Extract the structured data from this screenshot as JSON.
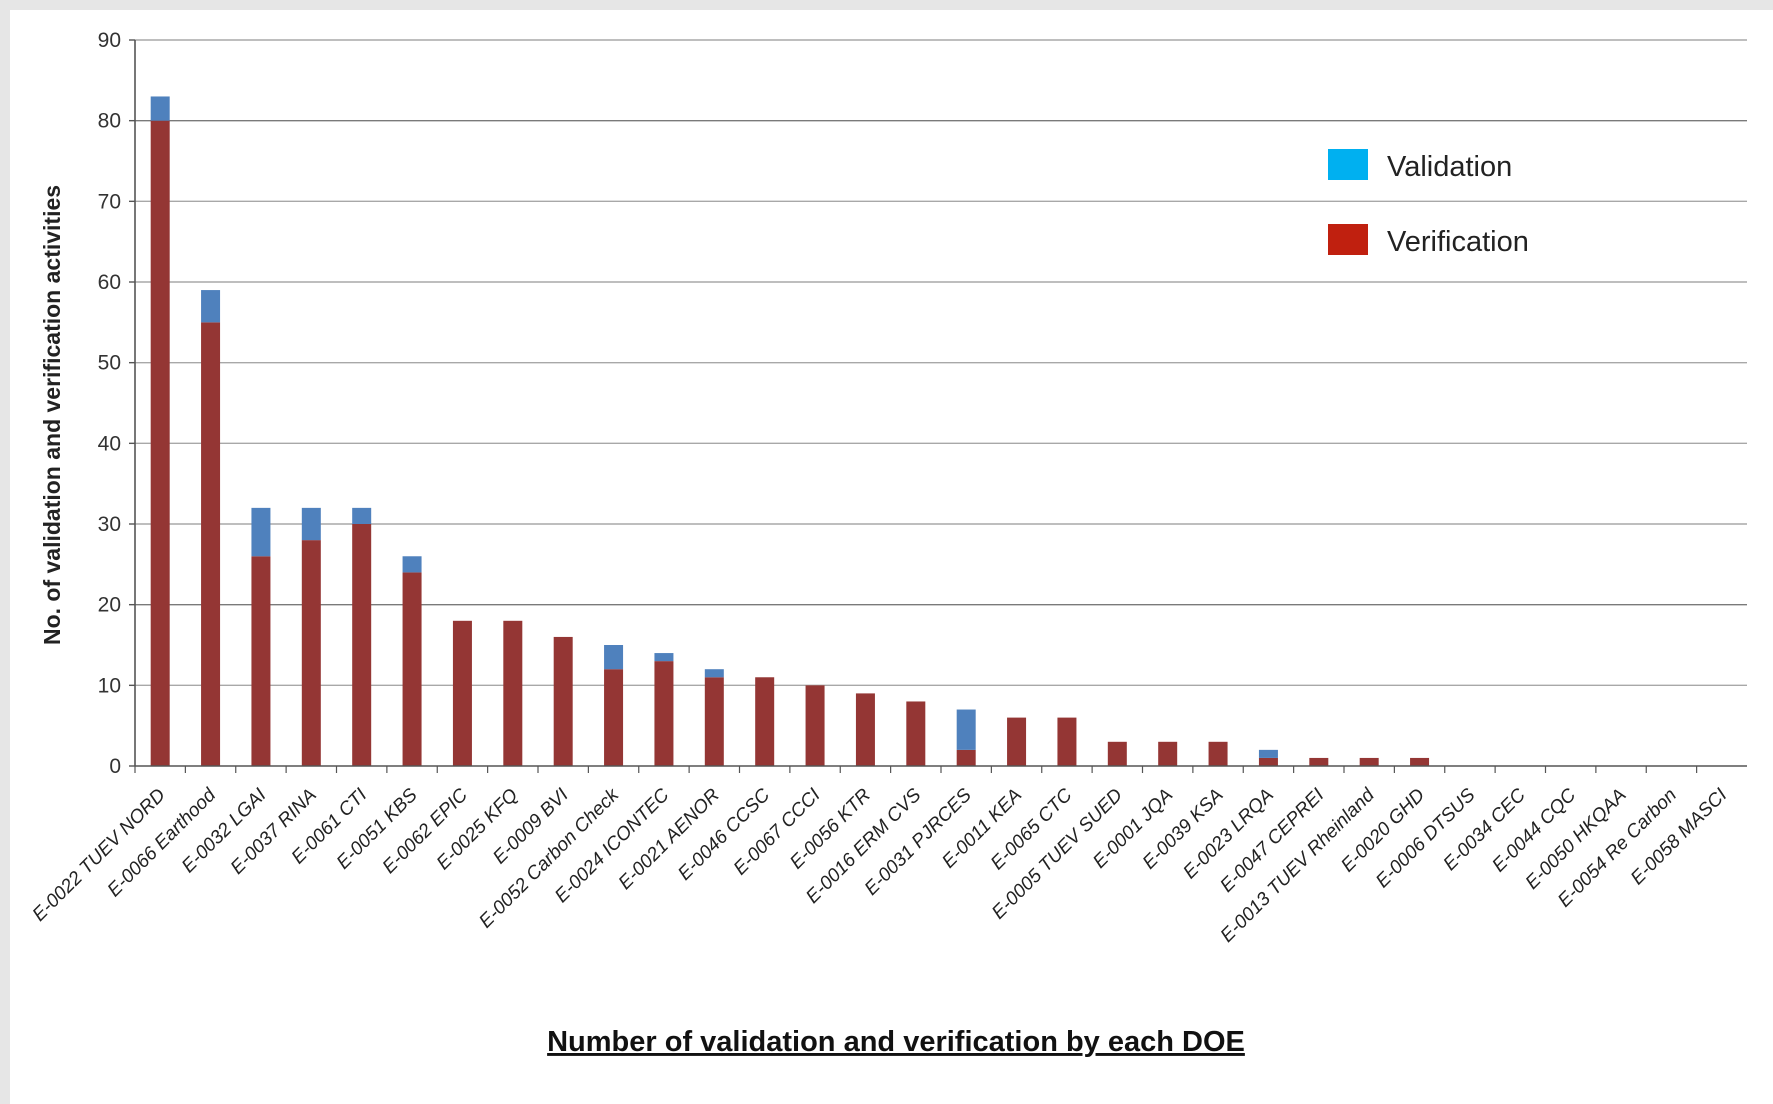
{
  "chart_data": {
    "type": "bar",
    "stacked": true,
    "title": "Number of validation and verification by each DOE",
    "xlabel": "",
    "ylabel": "No. of validation and verification activities",
    "ylim": [
      0,
      90
    ],
    "yticks": [
      0,
      10,
      20,
      30,
      40,
      50,
      60,
      70,
      80,
      90
    ],
    "grid": true,
    "legend_position": "top-right",
    "categories": [
      "E-0022 TUEV NORD",
      "E-0066 Earthood",
      "E-0032 LGAI",
      "E-0037 RINA",
      "E-0061 CTI",
      "E-0051 KBS",
      "E-0062 EPIC",
      "E-0025 KFQ",
      "E-0009 BVI",
      "E-0052 Carbon Check",
      "E-0024 ICONTEC",
      "E-0021 AENOR",
      "E-0046 CCSC",
      "E-0067 CCCI",
      "E-0056 KTR",
      "E-0016 ERM CVS",
      "E-0031 PJRCES",
      "E-0011 KEA",
      "E-0065 CTC",
      "E-0005 TUEV SUED",
      "E-0001 JQA",
      "E-0039 KSA",
      "E-0023 LRQA",
      "E-0047 CEPREI",
      "E-0013 TUEV Rheinland",
      "E-0020 GHD",
      "E-0006 DTSUS",
      "E-0034 CEC",
      "E-0044 CQC",
      "E-0050 HKQAA",
      "E-0054 Re Carbon",
      "E-0058 MASCI"
    ],
    "series": [
      {
        "name": "Verification",
        "color": "#943634",
        "values": [
          80,
          55,
          26,
          28,
          30,
          24,
          18,
          18,
          16,
          12,
          13,
          11,
          11,
          10,
          9,
          8,
          2,
          6,
          6,
          3,
          3,
          3,
          1,
          1,
          1,
          1,
          0,
          0,
          0,
          0,
          0,
          0
        ]
      },
      {
        "name": "Validation",
        "color": "#4f81bd",
        "values": [
          3,
          4,
          6,
          4,
          2,
          2,
          0,
          0,
          0,
          3,
          1,
          1,
          0,
          0,
          0,
          0,
          5,
          0,
          0,
          0,
          0,
          0,
          1,
          0,
          0,
          0,
          0,
          0,
          0,
          0,
          0,
          0
        ]
      }
    ],
    "legend": [
      {
        "name": "Validation",
        "color": "#00b0f0"
      },
      {
        "name": "Verification",
        "color": "#c0200f"
      }
    ]
  }
}
